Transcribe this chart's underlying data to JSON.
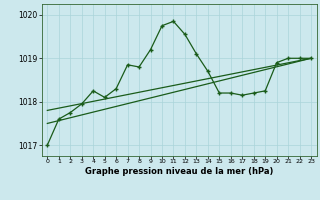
{
  "x_hours": [
    0,
    1,
    2,
    3,
    4,
    5,
    6,
    7,
    8,
    9,
    10,
    11,
    12,
    13,
    14,
    15,
    16,
    17,
    18,
    19,
    20,
    21,
    22,
    23
  ],
  "pressure_main": [
    1017.0,
    1017.6,
    1017.75,
    1017.95,
    1018.25,
    1018.1,
    1018.3,
    1018.85,
    1018.8,
    1019.2,
    1019.75,
    1019.85,
    1019.55,
    1019.1,
    1018.7,
    1018.2,
    1018.2,
    1018.15,
    1018.2,
    1018.25,
    1018.9,
    1019.0,
    1019.0,
    1019.0
  ],
  "trend_line1_x": [
    0,
    23
  ],
  "trend_line1_y": [
    1017.5,
    1019.0
  ],
  "trend_line2_x": [
    0,
    23
  ],
  "trend_line2_y": [
    1017.8,
    1019.0
  ],
  "ylim": [
    1016.75,
    1020.25
  ],
  "yticks": [
    1017,
    1018,
    1019,
    1020
  ],
  "xticks": [
    0,
    1,
    2,
    3,
    4,
    5,
    6,
    7,
    8,
    9,
    10,
    11,
    12,
    13,
    14,
    15,
    16,
    17,
    18,
    19,
    20,
    21,
    22,
    23
  ],
  "xlabel": "Graphe pression niveau de la mer (hPa)",
  "bg_color": "#cce8ed",
  "line_color": "#1a5c1a",
  "grid_color": "#aad4da",
  "marker": "+",
  "fig_width": 3.2,
  "fig_height": 2.0
}
